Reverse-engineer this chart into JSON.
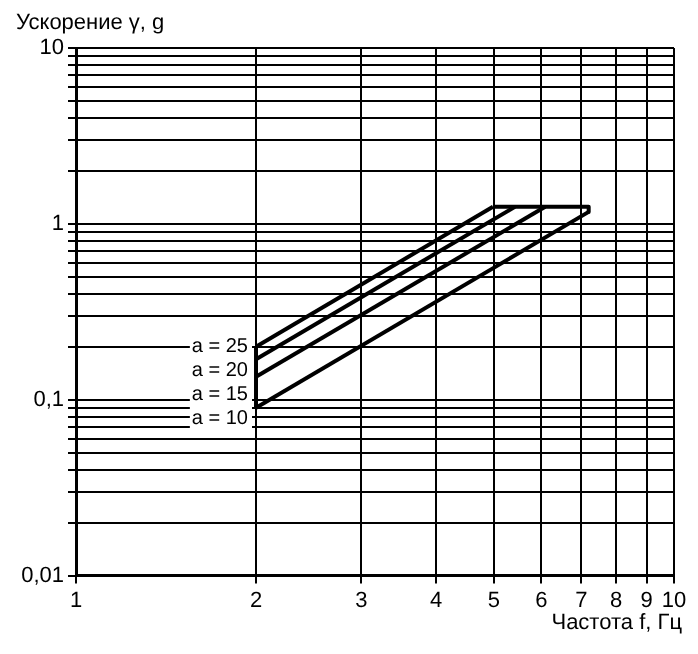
{
  "chart_data": {
    "type": "line",
    "xlabel": "Частота f, Гц",
    "ylabel": "Ускорение γ, g",
    "log": "xy",
    "grid": true,
    "legend": false,
    "marker": "none",
    "line_style": "solid",
    "xlim": [
      1,
      10
    ],
    "xticks": [
      1,
      2,
      3,
      4,
      5,
      6,
      7,
      8,
      9,
      10
    ],
    "ylim": [
      0.01,
      10
    ],
    "yticks": [
      {
        "value": 0.01,
        "label": "0,01"
      },
      {
        "value": 0.02,
        "label": null
      },
      {
        "value": 0.03,
        "label": null
      },
      {
        "value": 0.04,
        "label": null
      },
      {
        "value": 0.05,
        "label": null
      },
      {
        "value": 0.06,
        "label": null
      },
      {
        "value": 0.07,
        "label": null
      },
      {
        "value": 0.08,
        "label": null
      },
      {
        "value": 0.09,
        "label": null
      },
      {
        "value": 0.1,
        "label": "0,1"
      },
      {
        "value": 0.2,
        "label": null
      },
      {
        "value": 0.3,
        "label": null
      },
      {
        "value": 0.4,
        "label": null
      },
      {
        "value": 0.5,
        "label": null
      },
      {
        "value": 0.6,
        "label": null
      },
      {
        "value": 0.7,
        "label": null
      },
      {
        "value": 0.8,
        "label": null
      },
      {
        "value": 0.9,
        "label": null
      },
      1,
      {
        "value": 2,
        "label": null
      },
      {
        "value": 3,
        "label": null
      },
      {
        "value": 4,
        "label": null
      },
      {
        "value": 5,
        "label": null
      },
      {
        "value": 6,
        "label": null
      },
      {
        "value": 7,
        "label": null
      },
      {
        "value": 8,
        "label": null
      },
      {
        "value": 9,
        "label": null
      },
      10
    ],
    "series": [
      {
        "name": "a = 25",
        "color": "#000000",
        "x": [
          2,
          4.98
        ],
        "values": [
          0.2,
          1.25
        ]
      },
      {
        "name": "a = 20",
        "color": "#000000",
        "x": [
          2,
          5.42
        ],
        "values": [
          0.17,
          1.25
        ]
      },
      {
        "name": "a = 15",
        "color": "#000000",
        "x": [
          2,
          6.09
        ],
        "values": [
          0.135,
          1.25
        ]
      },
      {
        "name": "a = 10",
        "color": "#000000",
        "x": [
          2,
          7.2
        ],
        "values": [
          0.09,
          1.17
        ]
      },
      {
        "color": "#000000",
        "x": [
          2,
          2
        ],
        "values": [
          0.09,
          0.2
        ]
      },
      {
        "color": "#000000",
        "x": [
          4.98,
          7.2,
          7.2
        ],
        "values": [
          1.25,
          1.25,
          1.17
        ]
      }
    ]
  }
}
